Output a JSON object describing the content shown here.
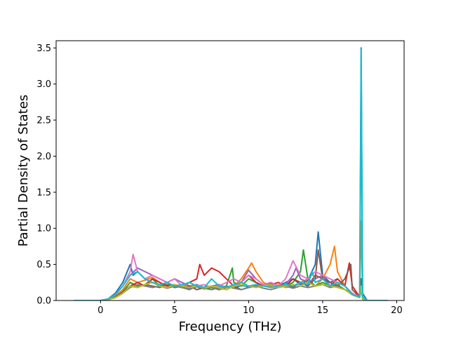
{
  "chart_data": {
    "type": "line",
    "title": "",
    "xlabel": "Frequency (THz)",
    "ylabel": "Partial Density of States",
    "xlim": [
      -3.0,
      20.5
    ],
    "ylim": [
      0.0,
      3.6
    ],
    "xticks": [
      0,
      5,
      10,
      15,
      20
    ],
    "yticks": [
      0.0,
      0.5,
      1.0,
      1.5,
      2.0,
      2.5,
      3.0,
      3.5
    ],
    "xtick_labels": [
      "0",
      "5",
      "10",
      "15",
      "20"
    ],
    "ytick_labels": [
      "0.0",
      "0.5",
      "1.0",
      "1.5",
      "2.0",
      "2.5",
      "3.0",
      "3.5"
    ],
    "grid": false,
    "legend": "none",
    "series": [
      {
        "color": "#1f77b4",
        "x": [
          -1.8,
          0,
          0.5,
          1,
          1.5,
          2,
          2.2,
          2.5,
          3,
          3.5,
          4,
          4.5,
          5,
          5.5,
          6,
          6.5,
          7,
          7.5,
          8,
          8.5,
          9,
          9.5,
          10,
          10.5,
          11,
          11.5,
          12,
          12.5,
          13,
          13.5,
          14,
          14.5,
          14.7,
          15,
          15.5,
          16,
          16.5,
          17,
          17.5,
          17.6,
          17.7,
          18,
          19.4
        ],
        "y": [
          0,
          0,
          0.02,
          0.1,
          0.25,
          0.5,
          0.35,
          0.4,
          0.3,
          0.25,
          0.2,
          0.22,
          0.18,
          0.2,
          0.17,
          0.19,
          0.16,
          0.18,
          0.15,
          0.2,
          0.17,
          0.21,
          0.19,
          0.22,
          0.2,
          0.24,
          0.2,
          0.25,
          0.3,
          0.22,
          0.28,
          0.5,
          0.95,
          0.35,
          0.25,
          0.3,
          0.2,
          0.1,
          0.05,
          3.5,
          0.1,
          0,
          0
        ]
      },
      {
        "color": "#ff7f0e",
        "x": [
          -1.8,
          0,
          0.5,
          1,
          1.5,
          2,
          2.5,
          3,
          3.5,
          4,
          4.5,
          5,
          5.5,
          6,
          6.5,
          7,
          7.5,
          8,
          8.5,
          9,
          9.5,
          10,
          10.2,
          10.5,
          11,
          11.5,
          12,
          12.5,
          13,
          13.5,
          14,
          14.5,
          15,
          15.5,
          15.8,
          16,
          16.5,
          17,
          17.5,
          17.6,
          17.7,
          18,
          19.4
        ],
        "y": [
          0,
          0,
          0.01,
          0.06,
          0.15,
          0.3,
          0.25,
          0.28,
          0.32,
          0.25,
          0.2,
          0.22,
          0.18,
          0.2,
          0.15,
          0.18,
          0.2,
          0.17,
          0.15,
          0.2,
          0.3,
          0.45,
          0.52,
          0.4,
          0.25,
          0.2,
          0.22,
          0.18,
          0.2,
          0.25,
          0.3,
          0.2,
          0.3,
          0.5,
          0.75,
          0.4,
          0.2,
          0.1,
          0.05,
          1.1,
          0.05,
          0,
          0
        ]
      },
      {
        "color": "#2ca02c",
        "x": [
          -1.8,
          0,
          0.5,
          1,
          1.5,
          2,
          2.5,
          3,
          3.5,
          4,
          4.5,
          5,
          5.5,
          6,
          6.5,
          7,
          7.5,
          8,
          8.5,
          8.9,
          9,
          9.5,
          10,
          10.5,
          11,
          11.5,
          12,
          12.5,
          13,
          13.5,
          13.7,
          14,
          14.5,
          15,
          15.5,
          16,
          16.5,
          17,
          17.5,
          17.6,
          17.7,
          18,
          19.4
        ],
        "y": [
          0,
          0,
          0.01,
          0.05,
          0.12,
          0.25,
          0.2,
          0.22,
          0.3,
          0.2,
          0.25,
          0.18,
          0.2,
          0.15,
          0.2,
          0.17,
          0.15,
          0.18,
          0.2,
          0.45,
          0.25,
          0.2,
          0.3,
          0.25,
          0.2,
          0.22,
          0.18,
          0.2,
          0.25,
          0.4,
          0.7,
          0.3,
          0.2,
          0.25,
          0.2,
          0.22,
          0.15,
          0.1,
          0.04,
          0.3,
          0.02,
          0,
          0
        ]
      },
      {
        "color": "#d62728",
        "x": [
          -1.8,
          0,
          0.5,
          1,
          1.5,
          2,
          2.5,
          3,
          3.5,
          4,
          4.5,
          5,
          5.5,
          6,
          6.5,
          6.7,
          7,
          7.5,
          8,
          8.5,
          9,
          9.5,
          10,
          10.5,
          11,
          11.5,
          12,
          12.5,
          13,
          13.5,
          14,
          14.5,
          15,
          15.5,
          16,
          16.5,
          16.8,
          17,
          17.5,
          17.6,
          17.7,
          18,
          19.4
        ],
        "y": [
          0,
          0,
          0.01,
          0.04,
          0.1,
          0.2,
          0.25,
          0.2,
          0.3,
          0.25,
          0.2,
          0.22,
          0.18,
          0.25,
          0.3,
          0.5,
          0.35,
          0.45,
          0.4,
          0.3,
          0.2,
          0.25,
          0.35,
          0.25,
          0.2,
          0.22,
          0.25,
          0.2,
          0.3,
          0.25,
          0.2,
          0.35,
          0.3,
          0.2,
          0.3,
          0.2,
          0.52,
          0.2,
          0.05,
          0.2,
          0.02,
          0,
          0
        ]
      },
      {
        "color": "#9467bd",
        "x": [
          -1.8,
          0,
          0.5,
          1,
          1.5,
          2,
          2.5,
          3,
          3.5,
          4,
          4.5,
          5,
          5.5,
          6,
          6.5,
          7,
          7.5,
          8,
          8.5,
          9,
          9.5,
          10,
          10.5,
          11,
          11.5,
          12,
          12.5,
          13,
          13.2,
          13.5,
          14,
          14.5,
          15,
          15.5,
          16,
          16.5,
          17,
          17.5,
          17.6,
          17.7,
          18,
          19.4
        ],
        "y": [
          0,
          0,
          0.02,
          0.08,
          0.2,
          0.35,
          0.45,
          0.4,
          0.35,
          0.3,
          0.25,
          0.3,
          0.25,
          0.2,
          0.22,
          0.18,
          0.2,
          0.22,
          0.18,
          0.2,
          0.25,
          0.42,
          0.3,
          0.22,
          0.25,
          0.2,
          0.22,
          0.35,
          0.45,
          0.3,
          0.25,
          0.3,
          0.35,
          0.2,
          0.25,
          0.2,
          0.1,
          0.05,
          0.25,
          0.02,
          0,
          0
        ]
      },
      {
        "color": "#8c564b",
        "x": [
          -1.8,
          0,
          0.5,
          1,
          1.5,
          2,
          2.5,
          3,
          3.5,
          4,
          4.5,
          5,
          5.5,
          6,
          6.5,
          7,
          7.5,
          8,
          8.5,
          9,
          9.5,
          10,
          10.5,
          11,
          11.5,
          12,
          12.5,
          13,
          13.5,
          14,
          14.5,
          14.7,
          15,
          15.5,
          16,
          16.5,
          16.9,
          17,
          17.5,
          17.6,
          17.7,
          18,
          19.4
        ],
        "y": [
          0,
          0,
          0.01,
          0.05,
          0.12,
          0.2,
          0.18,
          0.22,
          0.2,
          0.18,
          0.22,
          0.2,
          0.18,
          0.2,
          0.15,
          0.18,
          0.2,
          0.15,
          0.18,
          0.2,
          0.15,
          0.18,
          0.2,
          0.22,
          0.18,
          0.2,
          0.22,
          0.18,
          0.25,
          0.2,
          0.3,
          0.7,
          0.3,
          0.25,
          0.2,
          0.3,
          0.5,
          0.15,
          0.05,
          0.3,
          0.02,
          0,
          0
        ]
      },
      {
        "color": "#e377c2",
        "x": [
          -1.8,
          0,
          0.5,
          1,
          1.5,
          2,
          2.2,
          2.5,
          3,
          3.5,
          4,
          4.5,
          5,
          5.5,
          6,
          6.5,
          7,
          7.5,
          8,
          8.5,
          9,
          9.5,
          10,
          10.5,
          11,
          11.5,
          12,
          12.5,
          13,
          13.5,
          14,
          14.5,
          15,
          15.5,
          16,
          16.5,
          17,
          17.5,
          17.6,
          17.7,
          18,
          19.4
        ],
        "y": [
          0,
          0,
          0.02,
          0.08,
          0.2,
          0.4,
          0.64,
          0.4,
          0.3,
          0.35,
          0.3,
          0.25,
          0.3,
          0.2,
          0.25,
          0.2,
          0.22,
          0.18,
          0.2,
          0.25,
          0.3,
          0.25,
          0.35,
          0.3,
          0.22,
          0.25,
          0.2,
          0.3,
          0.55,
          0.35,
          0.3,
          0.4,
          0.35,
          0.3,
          0.25,
          0.2,
          0.1,
          0.05,
          0.2,
          0.02,
          0,
          0
        ]
      },
      {
        "color": "#7f7f7f",
        "x": [
          -1.8,
          0,
          0.5,
          1,
          1.5,
          2,
          2.5,
          3,
          3.5,
          4,
          4.5,
          5,
          5.5,
          6,
          6.5,
          7,
          7.5,
          8,
          8.5,
          9,
          9.5,
          10,
          10.5,
          11,
          11.5,
          12,
          12.5,
          13,
          13.5,
          14,
          14.5,
          15,
          15.5,
          16,
          16.5,
          17,
          17.5,
          17.6,
          17.7,
          18,
          19.4
        ],
        "y": [
          0,
          0,
          0.01,
          0.04,
          0.1,
          0.18,
          0.22,
          0.2,
          0.18,
          0.2,
          0.17,
          0.2,
          0.18,
          0.15,
          0.2,
          0.17,
          0.18,
          0.15,
          0.2,
          0.17,
          0.15,
          0.18,
          0.2,
          0.17,
          0.15,
          0.18,
          0.2,
          0.17,
          0.2,
          0.18,
          0.2,
          0.22,
          0.18,
          0.2,
          0.15,
          0.08,
          0.04,
          0.15,
          0.02,
          0,
          0
        ]
      },
      {
        "color": "#bcbd22",
        "x": [
          -1.8,
          0,
          0.5,
          1,
          1.5,
          2,
          2.5,
          3,
          3.5,
          4,
          4.5,
          5,
          5.5,
          6,
          6.5,
          7,
          7.5,
          8,
          8.5,
          9,
          9.5,
          10,
          10.5,
          11,
          11.5,
          12,
          12.5,
          13,
          13.5,
          14,
          14.5,
          15,
          15.5,
          16,
          16.5,
          17,
          17.5,
          17.6,
          17.7,
          18,
          19.4
        ],
        "y": [
          0,
          0,
          0.01,
          0.04,
          0.1,
          0.2,
          0.18,
          0.22,
          0.25,
          0.2,
          0.18,
          0.22,
          0.2,
          0.18,
          0.2,
          0.17,
          0.2,
          0.18,
          0.15,
          0.2,
          0.22,
          0.2,
          0.18,
          0.2,
          0.22,
          0.18,
          0.2,
          0.22,
          0.2,
          0.25,
          0.2,
          0.22,
          0.2,
          0.18,
          0.15,
          0.08,
          0.04,
          0.2,
          0.02,
          0,
          0
        ]
      },
      {
        "color": "#17becf",
        "x": [
          -1.8,
          0,
          0.5,
          1,
          1.5,
          2,
          2.5,
          3,
          3.5,
          4,
          4.5,
          5,
          5.5,
          6,
          6.5,
          7,
          7.5,
          8,
          8.5,
          9,
          9.5,
          10,
          10.5,
          11,
          11.5,
          12,
          12.5,
          13,
          13.5,
          14,
          14.3,
          14.5,
          15,
          15.5,
          16,
          16.5,
          17,
          17.5,
          17.55,
          17.6,
          17.65,
          17.7,
          18,
          19.4
        ],
        "y": [
          0,
          0,
          0.02,
          0.08,
          0.2,
          0.35,
          0.4,
          0.3,
          0.25,
          0.22,
          0.25,
          0.2,
          0.22,
          0.25,
          0.2,
          0.18,
          0.3,
          0.2,
          0.18,
          0.22,
          0.25,
          0.2,
          0.22,
          0.2,
          0.18,
          0.2,
          0.22,
          0.2,
          0.25,
          0.22,
          0.4,
          0.25,
          0.3,
          0.2,
          0.25,
          0.2,
          0.08,
          0.05,
          1.5,
          3.48,
          1.5,
          0.05,
          0,
          0
        ]
      }
    ]
  }
}
